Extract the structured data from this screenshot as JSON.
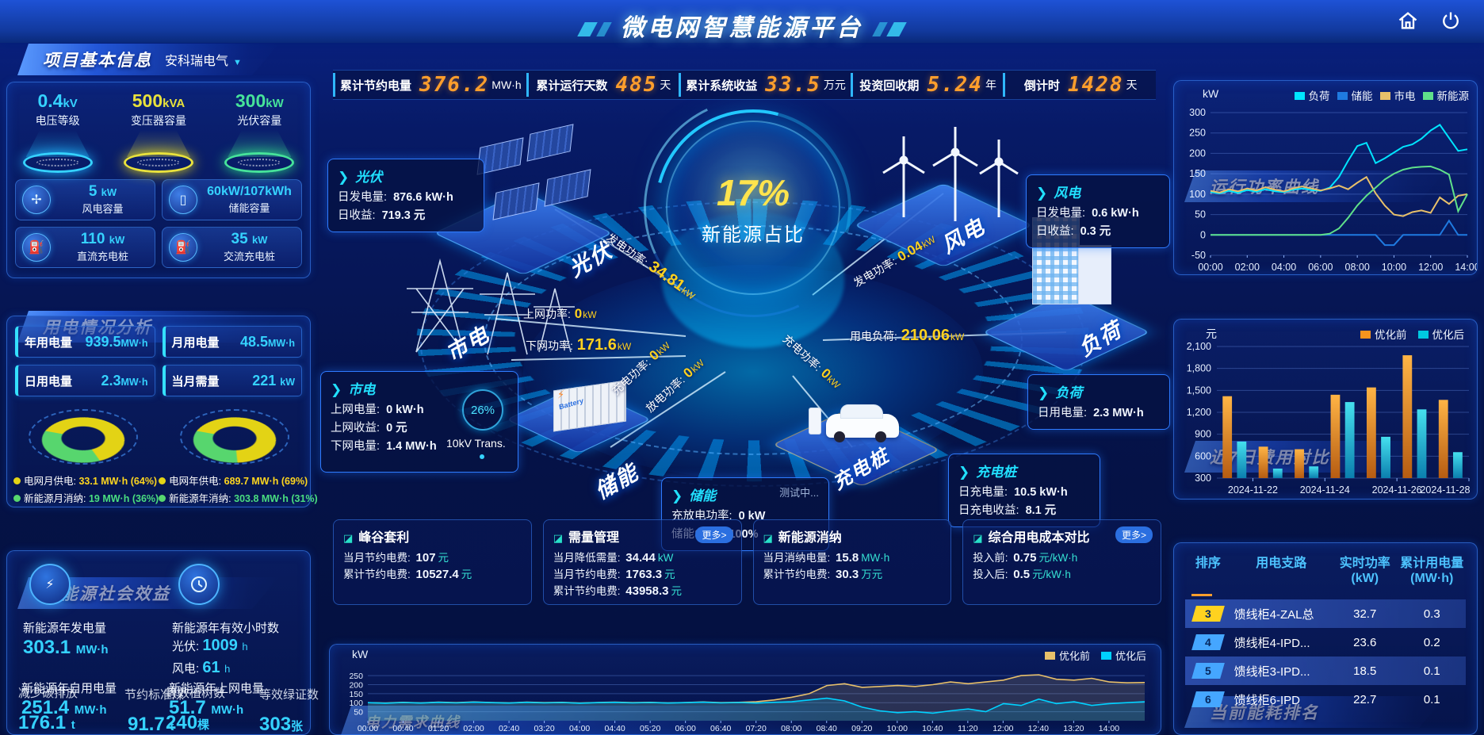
{
  "header": {
    "title": "微电网智慧能源平台"
  },
  "stats_bar": {
    "items": [
      {
        "label": "累计节约电量",
        "value": "376.2",
        "unit": "MW·h"
      },
      {
        "label": "累计运行天数",
        "value": "485",
        "unit": "天"
      },
      {
        "label": "累计系统收益",
        "value": "33.5",
        "unit": "万元"
      },
      {
        "label": "投资回收期",
        "value": "5.24",
        "unit": "年"
      },
      {
        "label": "倒计时",
        "value": "1428",
        "unit": "天"
      }
    ]
  },
  "project_info": {
    "title": "项目基本信息",
    "company": "安科瑞电气",
    "pedestals": [
      {
        "value": "0.4",
        "unit": "kV",
        "label": "电压等级"
      },
      {
        "value": "500",
        "unit": "kVA",
        "label": "变压器容量"
      },
      {
        "value": "300",
        "unit": "kW",
        "label": "光伏容量"
      }
    ],
    "cards": [
      {
        "value": "5",
        "unit": "kW",
        "label": "风电容量"
      },
      {
        "value": "60kW/107kWh",
        "unit": "",
        "label": "储能容量"
      },
      {
        "value": "110",
        "unit": "kW",
        "label": "直流充电桩"
      },
      {
        "value": "35",
        "unit": "kW",
        "label": "交流充电桩"
      }
    ]
  },
  "power_analysis": {
    "title": "用电情况分析",
    "stats": [
      {
        "label": "年用电量",
        "value": "939.5",
        "unit": "MW·h"
      },
      {
        "label": "月用电量",
        "value": "48.5",
        "unit": "MW·h"
      },
      {
        "label": "日用电量",
        "value": "2.3",
        "unit": "MW·h"
      },
      {
        "label": "当月需量",
        "value": "221",
        "unit": "kW"
      }
    ],
    "legend": [
      {
        "label": "电网月供电:",
        "value": "33.1 MW·h (64%)",
        "color": "yellow"
      },
      {
        "label": "电网年供电:",
        "value": "689.7 MW·h (69%)",
        "color": "yellow"
      },
      {
        "label": "新能源月消纳:",
        "value": "19 MW·h (36%)",
        "color": "green"
      },
      {
        "label": "新能源年消纳:",
        "value": "303.8 MW·h (31%)",
        "color": "green"
      }
    ]
  },
  "social_benefit": {
    "title": "新能源社会效益",
    "gen_label": "新能源年发电量",
    "gen_value": "303.1",
    "gen_unit": "MW·h",
    "hours_label": "新能源年有效小时数",
    "pv_hours": "光伏: ",
    "pv_hours_value": "1009",
    "pv_hours_unit": "h",
    "wind_hours": "风电: ",
    "wind_hours_value": "61",
    "wind_hours_unit": "h",
    "self_label": "新能源年自用电量",
    "self_value": "251.4",
    "self_unit": "MW·h",
    "grid_label": "新能源年上网电量",
    "grid_value": "51.7",
    "grid_unit": "MW·h",
    "co2_label": "减少碳排放",
    "co2_value": "176.1",
    "co2_unit": "t",
    "coal_label": "节约标准煤",
    "coal_value": "91.7",
    "coal_unit": "t",
    "tree_label": "等效植树数",
    "tree_value": "240",
    "tree_unit": "棵",
    "cert_label": "等效绿证数",
    "cert_value": "303",
    "cert_unit": "张"
  },
  "center": {
    "percent": "17%",
    "percent_label": "新能源占比",
    "pv_box": {
      "title": "光伏",
      "r0l": "日发电量: ",
      "r0v": "876.6 kW·h",
      "r1l": "日收益: ",
      "r1v": "719.3 元"
    },
    "wind_box": {
      "title": "风电",
      "r0l": "日发电量: ",
      "r0v": "0.6 kW·h",
      "r1l": "日收益: ",
      "r1v": "0.3 元"
    },
    "grid_box": {
      "title": "市电",
      "r0l": "上网电量: ",
      "r0v": "0 kW·h",
      "r1l": "上网收益: ",
      "r1v": "0 元",
      "r2l": "下网电量: ",
      "r2v": "1.4 MW·h"
    },
    "load_box": {
      "title": "负荷",
      "r0l": "日用电量: ",
      "r0v": "2.3 MW·h"
    },
    "storage_box": {
      "title": "储能",
      "badge": "测试中...",
      "r0l": "充放电功率: ",
      "r0v": "0 kW",
      "r1l": "储能SOC: ",
      "r1v": "100%"
    },
    "charger_box": {
      "title": "充电桩",
      "r0l": "日充电量: ",
      "r0v": "10.5 kW·h",
      "r1l": "日充电收益: ",
      "r1v": "8.1 元"
    },
    "labels": {
      "pv": "光伏",
      "wind": "风电",
      "grid": "市电",
      "load": "负荷",
      "storage": "储能",
      "charger": "充电桩"
    },
    "transformer": {
      "percent": "26%",
      "label": "10kV Trans."
    },
    "flows": {
      "pv_gen": {
        "label": "发电功率: ",
        "value": "34.81",
        "unit": "kW"
      },
      "wind_gen": {
        "label": "发电功率: ",
        "value": "0.04",
        "unit": "kW"
      },
      "grid_up": {
        "label": "上网功率: ",
        "value": "0",
        "unit": "kW"
      },
      "grid_down": {
        "label": "下网功率: ",
        "value": "171.6",
        "unit": "kW"
      },
      "sto_charge": {
        "label": "充电功率: ",
        "value": "0",
        "unit": "kW"
      },
      "sto_discharge": {
        "label": "放电功率: ",
        "value": "0",
        "unit": "kW"
      },
      "load_use": {
        "label": "用电负荷: ",
        "value": "210.06",
        "unit": "kW"
      },
      "ev_charge": {
        "label": "充电功率: ",
        "value": "0",
        "unit": "kW"
      }
    }
  },
  "benefit_cards": [
    {
      "title": "峰谷套利",
      "more": "",
      "rows": [
        {
          "label": "当月节约电费: ",
          "value": "107",
          "unit": "元"
        },
        {
          "label": "累计节约电费: ",
          "value": "10527.4",
          "unit": "元"
        }
      ]
    },
    {
      "title": "需量管理",
      "more": "更多>",
      "rows": [
        {
          "label": "当月降低需量: ",
          "value": "34.44",
          "unit": "kW"
        },
        {
          "label": "当月节约电费: ",
          "value": "1763.3",
          "unit": "元"
        },
        {
          "label": "累计节约电费: ",
          "value": "43958.3",
          "unit": "元"
        }
      ]
    },
    {
      "title": "新能源消纳",
      "more": "",
      "rows": [
        {
          "label": "当月消纳电量: ",
          "value": "15.8",
          "unit": "MW·h"
        },
        {
          "label": "累计节约电费: ",
          "value": "30.3",
          "unit": "万元"
        }
      ]
    },
    {
      "title": "综合用电成本对比",
      "more": "更多>",
      "rows": [
        {
          "label": "投入前: ",
          "value": "0.75",
          "unit": "元/kW·h"
        },
        {
          "label": "投入后: ",
          "value": "0.5",
          "unit": "元/kW·h"
        }
      ]
    }
  ],
  "panels": {
    "run_title": "运行功率曲线",
    "run_unit": "kW",
    "cost_title": "近7日费用对比",
    "cost_unit": "元",
    "demand_title": "电力需求曲线",
    "demand_unit": "kW",
    "rank_title": "当前能耗排名"
  },
  "ranking": {
    "headers": [
      {
        "t": "排序",
        "s": ""
      },
      {
        "t": "用电支路",
        "s": ""
      },
      {
        "t": "实时功率",
        "s": "(kW)"
      },
      {
        "t": "累计用电量",
        "s": "(MW·h)"
      }
    ],
    "rows": [
      {
        "rank": "3",
        "branch": "馈线柜4-ZAL总",
        "power": "32.7",
        "energy": "0.3",
        "badge": "#ffd21f"
      },
      {
        "rank": "4",
        "branch": "馈线柜4-IPD...",
        "power": "23.6",
        "energy": "0.2",
        "badge": "#45a6ff"
      },
      {
        "rank": "5",
        "branch": "馈线柜3-IPD...",
        "power": "18.5",
        "energy": "0.1",
        "badge": "#45a6ff"
      },
      {
        "rank": "6",
        "branch": "馈线柜6-IPD",
        "power": "22.7",
        "energy": "0.1",
        "badge": "#45a6ff"
      }
    ]
  },
  "chart_data": [
    {
      "id": "run-power",
      "type": "line",
      "title": "运行功率曲线",
      "ylabel": "kW",
      "x_labels": [
        "00:00",
        "02:00",
        "04:00",
        "06:00",
        "08:00",
        "10:00",
        "12:00",
        "14:00"
      ],
      "ylim": [
        -50,
        300
      ],
      "y_ticks": [
        -50,
        0,
        50,
        100,
        150,
        200,
        250,
        300
      ],
      "grid": true,
      "legend_position": "top",
      "series": [
        {
          "name": "负荷",
          "color": "#00e5ff",
          "values": [
            105,
            102,
            108,
            103,
            110,
            106,
            112,
            107,
            105,
            111,
            114,
            110,
            108,
            116,
            142,
            182,
            218,
            226,
            176,
            188,
            202,
            216,
            222,
            236,
            256,
            270,
            238,
            206,
            210
          ]
        },
        {
          "name": "储能",
          "color": "#1f7ae0",
          "values": [
            0,
            0,
            0,
            0,
            0,
            0,
            0,
            0,
            0,
            0,
            0,
            0,
            0,
            0,
            0,
            0,
            0,
            0,
            0,
            -25,
            -25,
            0,
            0,
            0,
            0,
            0,
            35,
            0,
            0
          ]
        },
        {
          "name": "市电",
          "color": "#e8c06a",
          "values": [
            108,
            104,
            112,
            107,
            114,
            109,
            117,
            111,
            107,
            114,
            119,
            114,
            109,
            114,
            121,
            112,
            128,
            142,
            102,
            72,
            50,
            46,
            56,
            60,
            54,
            92,
            76,
            96,
            100
          ]
        },
        {
          "name": "新能源",
          "color": "#5fe08a",
          "values": [
            0,
            0,
            0,
            0,
            0,
            0,
            0,
            0,
            0,
            0,
            0,
            0,
            0,
            3,
            16,
            42,
            72,
            96,
            116,
            136,
            150,
            160,
            165,
            167,
            168,
            160,
            148,
            58,
            100
          ]
        }
      ]
    },
    {
      "id": "cost-compare",
      "type": "bar",
      "title": "近7日费用对比",
      "ylabel": "元",
      "categories": [
        "2024-11-22",
        "2024-11-23",
        "2024-11-24",
        "2024-11-25",
        "2024-11-26",
        "2024-11-27",
        "2024-11-28"
      ],
      "x_tick_labels": [
        "2024-11-22",
        "2024-11-24",
        "2024-11-26",
        "2024-11-28"
      ],
      "ylim": [
        300,
        2100
      ],
      "y_ticks": [
        300,
        600,
        900,
        1200,
        1500,
        1800,
        2100
      ],
      "y_tick_labels": [
        "300",
        "600",
        "900",
        "1,200",
        "1,500",
        "1,800",
        "2,100"
      ],
      "grid": true,
      "legend_position": "top",
      "series": [
        {
          "name": "优化前",
          "color": "#f7941e",
          "values": [
            1420,
            730,
            695,
            1440,
            1540,
            1980,
            1370
          ]
        },
        {
          "name": "优化后",
          "color": "#00c8e0",
          "values": [
            800,
            430,
            460,
            1340,
            865,
            1240,
            655
          ]
        }
      ]
    },
    {
      "id": "demand",
      "type": "line",
      "title": "电力需求曲线",
      "ylabel": "kW",
      "x_labels": [
        "00:00",
        "00:40",
        "01:20",
        "02:00",
        "02:40",
        "03:20",
        "04:00",
        "04:40",
        "05:20",
        "06:00",
        "06:40",
        "07:20",
        "08:00",
        "08:40",
        "09:20",
        "10:00",
        "10:40",
        "11:20",
        "12:00",
        "12:40",
        "13:20",
        "14:00"
      ],
      "x_label_span": 0.954,
      "ylim": [
        0,
        290
      ],
      "y_ticks": [
        50,
        100,
        150,
        200,
        250
      ],
      "grid": true,
      "legend_position": "top-right",
      "series": [
        {
          "name": "优化前",
          "color": "#e8c06a",
          "fill": true,
          "values": [
            100,
            98,
            102,
            99,
            103,
            100,
            104,
            101,
            99,
            103,
            100,
            102,
            98,
            101,
            103,
            100,
            102,
            99,
            101,
            104,
            100,
            102,
            105,
            115,
            130,
            150,
            195,
            205,
            185,
            190,
            195,
            190,
            200,
            215,
            205,
            215,
            225,
            250,
            255,
            230,
            225,
            235,
            215,
            210,
            212
          ]
        },
        {
          "name": "优化后",
          "color": "#00d2ff",
          "fill": true,
          "values": [
            100,
            97,
            101,
            98,
            102,
            99,
            103,
            100,
            98,
            102,
            99,
            101,
            97,
            100,
            102,
            99,
            101,
            98,
            100,
            103,
            99,
            101,
            98,
            102,
            105,
            115,
            125,
            110,
            75,
            55,
            45,
            50,
            42,
            55,
            65,
            50,
            95,
            85,
            120,
            95,
            105,
            85,
            95,
            100,
            105
          ]
        }
      ]
    },
    {
      "id": "donut-month",
      "type": "pie",
      "slices": [
        {
          "name": "电网月供电",
          "pct": 64,
          "color": "#e3d315"
        },
        {
          "name": "新能源月消纳",
          "pct": 36,
          "color": "#57d66e"
        }
      ]
    },
    {
      "id": "donut-year",
      "type": "pie",
      "slices": [
        {
          "name": "电网年供电",
          "pct": 69,
          "color": "#e3d315"
        },
        {
          "name": "新能源年消纳",
          "pct": 31,
          "color": "#57d66e"
        }
      ]
    }
  ]
}
